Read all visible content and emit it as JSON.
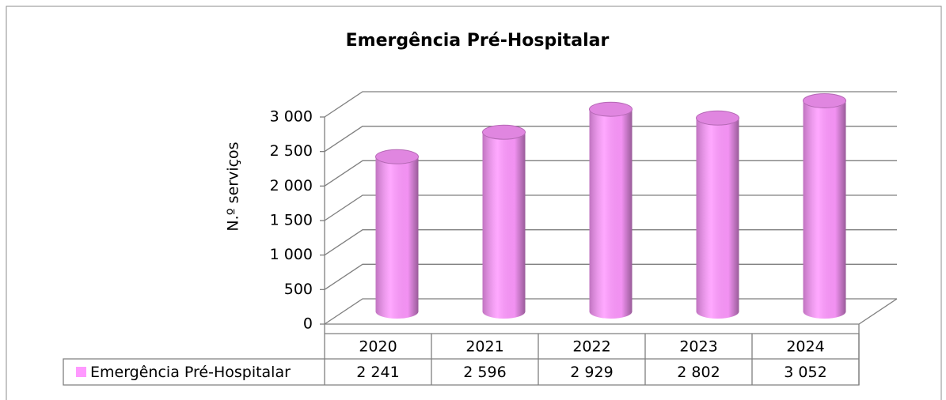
{
  "chart_data": {
    "type": "bar",
    "title": "Emergência Pré-Hospitalar",
    "y_label": "N.º serviços",
    "categories": [
      "2020",
      "2021",
      "2022",
      "2023",
      "2024"
    ],
    "series": [
      {
        "name": "Emergência Pré-Hospitalar",
        "color": "#ff99ff",
        "values": [
          2241,
          2596,
          2929,
          2802,
          3052
        ],
        "value_labels": [
          "2 241",
          "2 596",
          "2 929",
          "2 802",
          "3 052"
        ]
      }
    ],
    "ylim": [
      0,
      3000
    ],
    "yticks": [
      0,
      500,
      {
        "value": 1000,
        "label": "1 000"
      },
      {
        "value": 1500,
        "label": "1 500"
      },
      {
        "value": 2000,
        "label": "2 000"
      },
      {
        "value": 2500,
        "label": "2 500"
      },
      {
        "value": 3000,
        "label": "3 000"
      }
    ],
    "grid": true
  }
}
